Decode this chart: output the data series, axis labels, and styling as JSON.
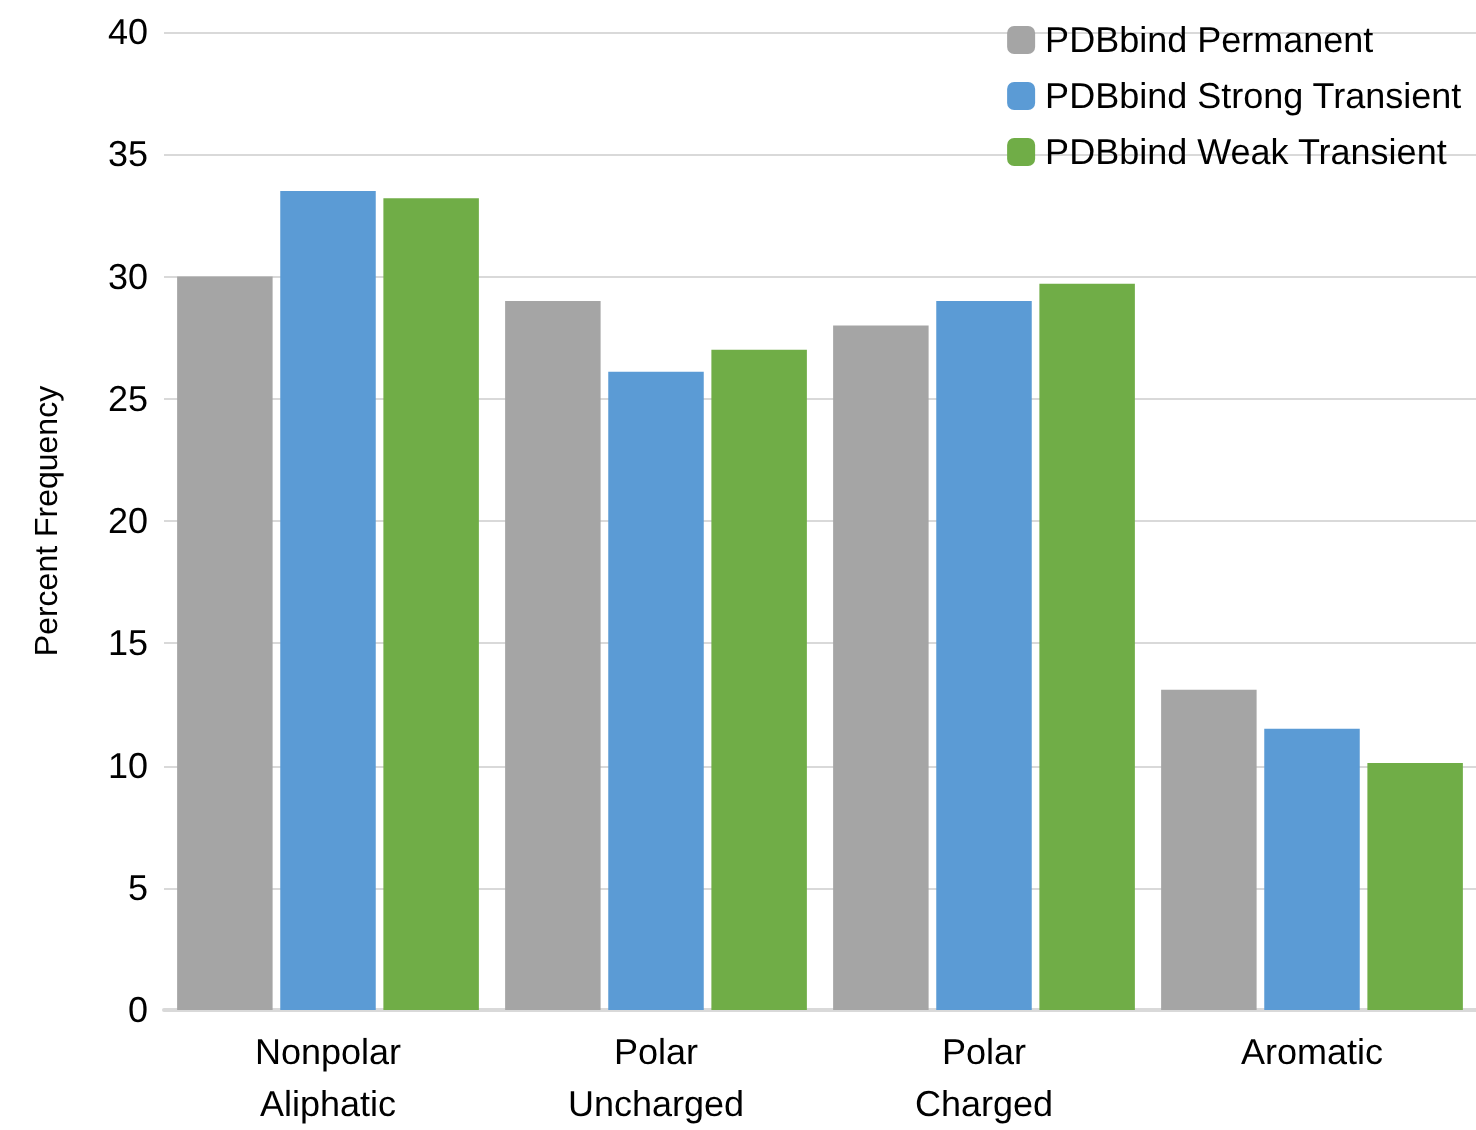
{
  "chart_data": {
    "type": "bar",
    "ylabel": "Percent Frequency",
    "categories": [
      "Nonpolar\nAliphatic",
      "Polar\nUncharged",
      "Polar\nCharged",
      "Aromatic"
    ],
    "series": [
      {
        "name": "PDBbind Permanent",
        "color": "#a5a5a5",
        "values": [
          30.0,
          29.0,
          28.0,
          13.1
        ]
      },
      {
        "name": "PDBbind Strong Transient",
        "color": "#5b9bd5",
        "values": [
          33.5,
          26.1,
          29.0,
          11.5
        ]
      },
      {
        "name": "PDBbind Weak Transient",
        "color": "#70ad47",
        "values": [
          33.2,
          27.0,
          29.7,
          10.1
        ]
      }
    ],
    "ylim": [
      0,
      40
    ],
    "yticks": [
      0,
      5,
      10,
      15,
      20,
      25,
      30,
      35,
      40
    ],
    "grid": "y",
    "legend": "top right"
  }
}
